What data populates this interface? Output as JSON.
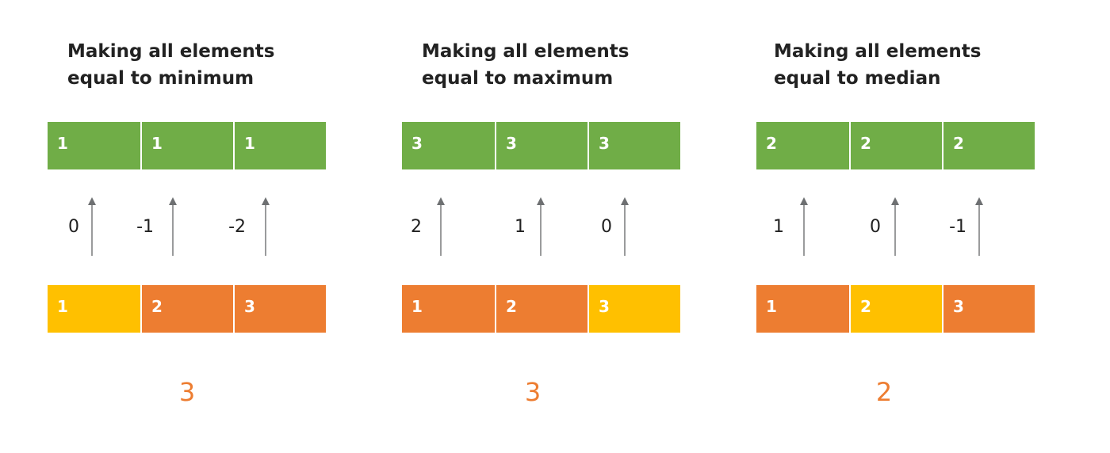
{
  "colors": {
    "target": "#70AD47",
    "changed": "#ED7D31",
    "unchanged": "#FFC000",
    "result": "#ED7D31",
    "arrow": "#6E7072"
  },
  "panels": [
    {
      "title_line1": "Making all elements",
      "title_line2": "equal to minimum",
      "target": [
        "1",
        "1",
        "1"
      ],
      "diffs": [
        "0",
        "-1",
        "-2"
      ],
      "source": [
        {
          "value": "1",
          "state": "unchanged"
        },
        {
          "value": "2",
          "state": "changed"
        },
        {
          "value": "3",
          "state": "changed"
        }
      ],
      "result": "3"
    },
    {
      "title_line1": "Making all elements",
      "title_line2": "equal to maximum",
      "target": [
        "3",
        "3",
        "3"
      ],
      "diffs": [
        "2",
        "1",
        "0"
      ],
      "source": [
        {
          "value": "1",
          "state": "changed"
        },
        {
          "value": "2",
          "state": "changed"
        },
        {
          "value": "3",
          "state": "unchanged"
        }
      ],
      "result": "3"
    },
    {
      "title_line1": "Making all elements",
      "title_line2": "equal to median",
      "target": [
        "2",
        "2",
        "2"
      ],
      "diffs": [
        "1",
        "0",
        "-1"
      ],
      "source": [
        {
          "value": "1",
          "state": "changed"
        },
        {
          "value": "2",
          "state": "unchanged"
        },
        {
          "value": "3",
          "state": "changed"
        }
      ],
      "result": "2"
    }
  ]
}
